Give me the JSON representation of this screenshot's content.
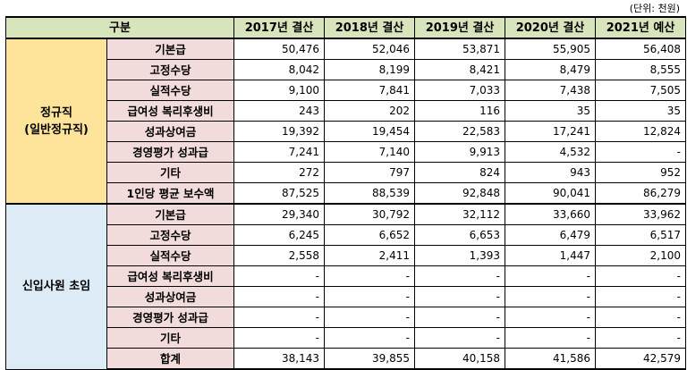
{
  "unit_label": "(단위: 천원)",
  "header": {
    "category": "구분",
    "years": [
      "2017년 결산",
      "2018년 결산",
      "2019년 결산",
      "2020년 결산",
      "2021년 예산"
    ]
  },
  "groups": [
    {
      "name": "정규직\n(일반정규직)",
      "rows": [
        {
          "label": "기본급",
          "values": [
            "50,476",
            "52,046",
            "53,871",
            "55,905",
            "56,408"
          ]
        },
        {
          "label": "고정수당",
          "values": [
            "8,042",
            "8,199",
            "8,421",
            "8,479",
            "8,555"
          ]
        },
        {
          "label": "실적수당",
          "values": [
            "9,100",
            "7,841",
            "7,033",
            "7,438",
            "7,505"
          ]
        },
        {
          "label": "급여성 복리후생비",
          "values": [
            "243",
            "202",
            "116",
            "35",
            "35"
          ]
        },
        {
          "label": "성과상여금",
          "values": [
            "19,392",
            "19,454",
            "22,583",
            "17,241",
            "12,824"
          ]
        },
        {
          "label": "경영평가 성과급",
          "values": [
            "7,241",
            "7,140",
            "9,913",
            "4,532",
            "-"
          ]
        },
        {
          "label": "기타",
          "values": [
            "272",
            "797",
            "824",
            "943",
            "952"
          ]
        },
        {
          "label": "1인당 평균 보수액",
          "values": [
            "87,525",
            "88,539",
            "92,848",
            "90,041",
            "86,279"
          ]
        }
      ]
    },
    {
      "name": "신입사원 초임",
      "rows": [
        {
          "label": "기본급",
          "values": [
            "29,340",
            "30,792",
            "32,112",
            "33,660",
            "33,962"
          ]
        },
        {
          "label": "고정수당",
          "values": [
            "6,245",
            "6,652",
            "6,653",
            "6,479",
            "6,517"
          ]
        },
        {
          "label": "실적수당",
          "values": [
            "2,558",
            "2,411",
            "1,393",
            "1,447",
            "2,100"
          ]
        },
        {
          "label": "급여성 복리후생비",
          "values": [
            "-",
            "-",
            "-",
            "-",
            "-"
          ]
        },
        {
          "label": "성과상여금",
          "values": [
            "-",
            "-",
            "-",
            "-",
            "-"
          ]
        },
        {
          "label": "경영평가 성과급",
          "values": [
            "-",
            "-",
            "-",
            "-",
            "-"
          ]
        },
        {
          "label": "기타",
          "values": [
            "-",
            "-",
            "-",
            "-",
            "-"
          ]
        },
        {
          "label": "합계",
          "values": [
            "38,143",
            "39,855",
            "40,158",
            "41,586",
            "42,579"
          ]
        }
      ]
    }
  ]
}
